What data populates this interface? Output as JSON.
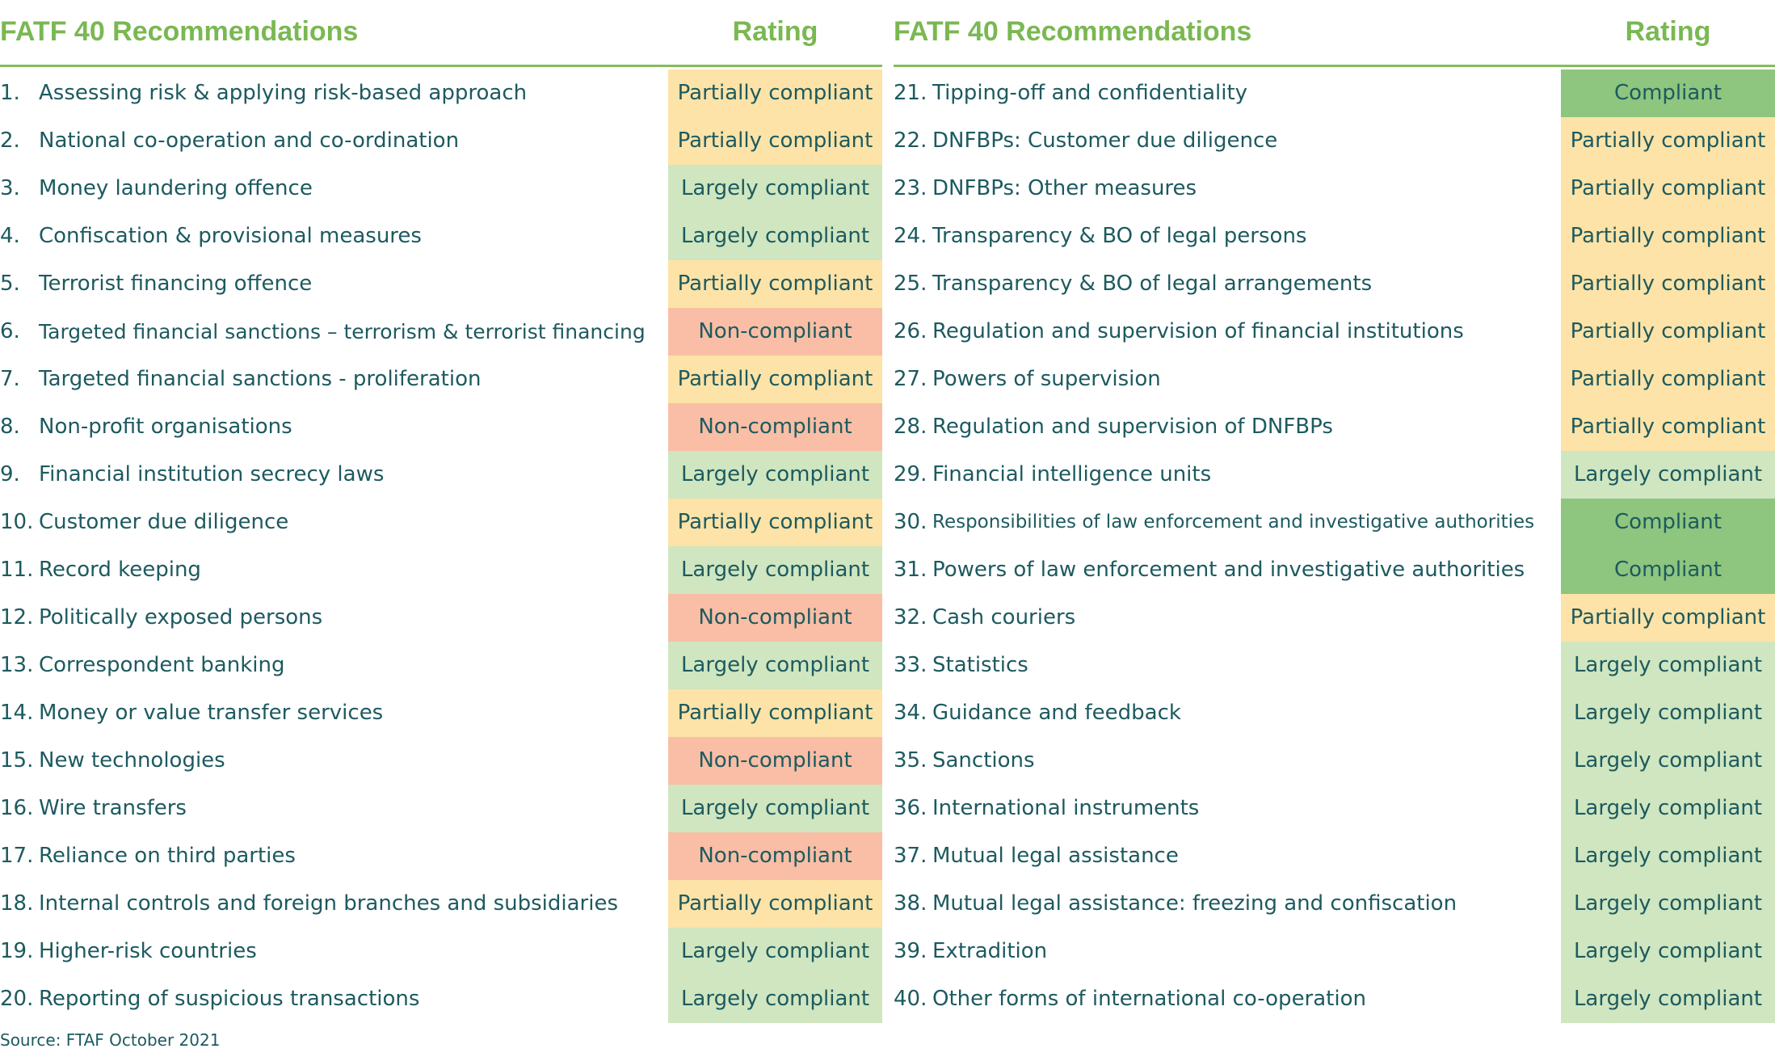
{
  "chart_data": {
    "type": "table",
    "columns": [
      "FATF 40 Recommendations",
      "Rating"
    ],
    "rating_colors": {
      "Compliant": "#8ec57f",
      "Largely compliant": "#cfe6c0",
      "Partially compliant": "#fde3a7",
      "Non-compliant": "#f9bea5"
    },
    "rows": [
      {
        "num": "1.",
        "name": "Assessing risk & applying risk-based approach",
        "rating": "Partially compliant"
      },
      {
        "num": "2.",
        "name": "National co-operation and co-ordination",
        "rating": "Partially compliant"
      },
      {
        "num": "3.",
        "name": "Money laundering offence",
        "rating": "Largely compliant"
      },
      {
        "num": "4.",
        "name": "Confiscation & provisional measures",
        "rating": "Largely compliant"
      },
      {
        "num": "5.",
        "name": "Terrorist financing offence",
        "rating": "Partially compliant"
      },
      {
        "num": "6.",
        "name": "Targeted financial sanctions – terrorism & terrorist financing",
        "rating": "Non-compliant"
      },
      {
        "num": "7.",
        "name": "Targeted financial sanctions - proliferation",
        "rating": "Partially compliant"
      },
      {
        "num": "8.",
        "name": "Non-profit organisations",
        "rating": "Non-compliant"
      },
      {
        "num": "9.",
        "name": "Financial institution secrecy laws",
        "rating": "Largely compliant"
      },
      {
        "num": "10.",
        "name": "Customer due diligence",
        "rating": "Partially compliant"
      },
      {
        "num": "11.",
        "name": "Record keeping",
        "rating": "Largely compliant"
      },
      {
        "num": "12.",
        "name": "Politically exposed persons",
        "rating": "Non-compliant"
      },
      {
        "num": "13.",
        "name": "Correspondent banking",
        "rating": "Largely compliant"
      },
      {
        "num": "14.",
        "name": "Money or value transfer services",
        "rating": "Partially compliant"
      },
      {
        "num": "15.",
        "name": "New technologies",
        "rating": "Non-compliant"
      },
      {
        "num": "16.",
        "name": "Wire transfers",
        "rating": "Largely compliant"
      },
      {
        "num": "17.",
        "name": "Reliance on third parties",
        "rating": "Non-compliant"
      },
      {
        "num": "18.",
        "name": "Internal controls and foreign branches and subsidiaries",
        "rating": "Partially compliant"
      },
      {
        "num": "19.",
        "name": "Higher-risk countries",
        "rating": "Largely compliant"
      },
      {
        "num": "20.",
        "name": "Reporting of suspicious transactions",
        "rating": "Largely compliant"
      },
      {
        "num": "21.",
        "name": "Tipping-off and confidentiality",
        "rating": "Compliant"
      },
      {
        "num": "22.",
        "name": "DNFBPs: Customer due diligence",
        "rating": "Partially compliant"
      },
      {
        "num": "23.",
        "name": "DNFBPs: Other measures",
        "rating": "Partially compliant"
      },
      {
        "num": "24.",
        "name": "Transparency & BO of legal persons",
        "rating": "Partially compliant"
      },
      {
        "num": "25.",
        "name": "Transparency & BO of legal arrangements",
        "rating": "Partially compliant"
      },
      {
        "num": "26.",
        "name": "Regulation and supervision of financial institutions",
        "rating": "Partially compliant"
      },
      {
        "num": "27.",
        "name": "Powers of supervision",
        "rating": "Partially compliant"
      },
      {
        "num": "28.",
        "name": "Regulation and supervision of DNFBPs",
        "rating": "Partially compliant"
      },
      {
        "num": "29.",
        "name": "Financial intelligence units",
        "rating": "Largely compliant"
      },
      {
        "num": "30.",
        "name": "Responsibilities of law enforcement and investigative authorities",
        "rating": "Compliant"
      },
      {
        "num": "31.",
        "name": "Powers of law enforcement and investigative authorities",
        "rating": "Compliant"
      },
      {
        "num": "32.",
        "name": "Cash couriers",
        "rating": "Partially compliant"
      },
      {
        "num": "33.",
        "name": "Statistics",
        "rating": "Largely compliant"
      },
      {
        "num": "34.",
        "name": "Guidance and feedback",
        "rating": "Largely compliant"
      },
      {
        "num": "35.",
        "name": "Sanctions",
        "rating": "Largely compliant"
      },
      {
        "num": "36.",
        "name": "International instruments",
        "rating": "Largely compliant"
      },
      {
        "num": "37.",
        "name": "Mutual legal assistance",
        "rating": "Largely compliant"
      },
      {
        "num": "38.",
        "name": "Mutual legal assistance: freezing and confiscation",
        "rating": "Largely compliant"
      },
      {
        "num": "39.",
        "name": "Extradition",
        "rating": "Largely compliant"
      },
      {
        "num": "40.",
        "name": "Other forms of international co-operation",
        "rating": "Largely compliant"
      }
    ],
    "source": "Source: FTAF October 2021"
  }
}
